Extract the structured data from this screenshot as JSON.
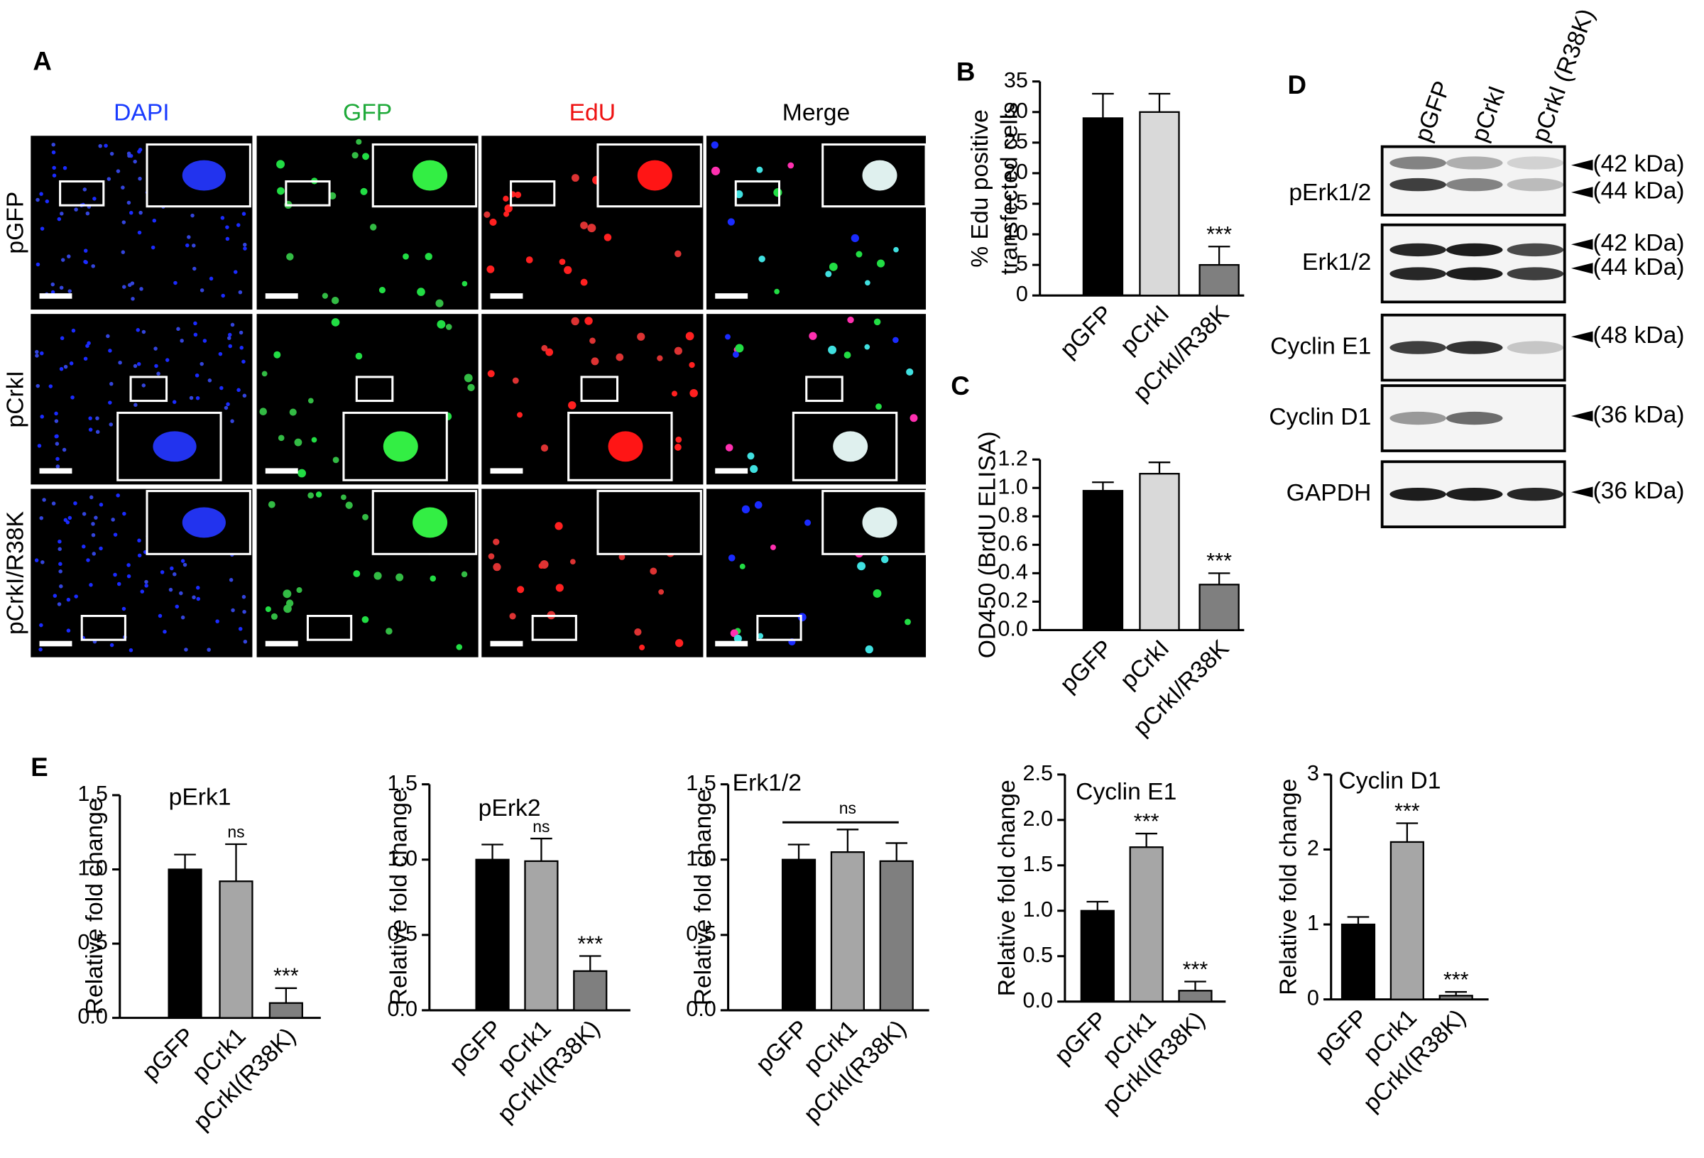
{
  "panel_labels": [
    "A",
    "B",
    "C",
    "D",
    "E"
  ],
  "panel_a": {
    "columns": [
      "DAPI",
      "GFP",
      "EdU",
      "Merge"
    ],
    "rows": [
      "pGFP",
      "pCrkI",
      "pCrkI/R38K"
    ]
  },
  "panel_d": {
    "lanes": [
      "pGFP",
      "pCrkI",
      "pCrkI (R38K)"
    ],
    "blots": [
      {
        "name": "pErk1/2",
        "sizes": [
          "(42 kDa)",
          "(44 kDa)"
        ]
      },
      {
        "name": "Erk1/2",
        "sizes": [
          "(42 kDa)",
          "(44 kDa)"
        ]
      },
      {
        "name": "Cyclin E1",
        "sizes": [
          "(48 kDa)"
        ]
      },
      {
        "name": "Cyclin D1",
        "sizes": [
          "(36 kDa)"
        ]
      },
      {
        "name": "GAPDH",
        "sizes": [
          "(36 kDa)"
        ]
      }
    ]
  },
  "chart_data": [
    {
      "type": "bar",
      "ylabel": [
        "% Edu positive",
        "transfected cells"
      ],
      "categories": [
        "pGFP",
        "pCrkI",
        "pCrkI/R38K"
      ],
      "values": [
        29,
        30,
        5
      ],
      "errors": [
        4,
        3,
        3
      ],
      "colors": [
        "#000000",
        "#d9d9d9",
        "#7f7f7f"
      ],
      "significance": [
        null,
        null,
        "***"
      ],
      "ylim": [
        0,
        35
      ],
      "yticks": [
        0,
        5,
        10,
        15,
        20,
        25,
        30,
        35
      ]
    },
    {
      "type": "bar",
      "ylabel": [
        "OD450 (BrdU ELISA)"
      ],
      "categories": [
        "pGFP",
        "pCrkI",
        "pCrkI/R38K"
      ],
      "values": [
        0.98,
        1.1,
        0.32
      ],
      "errors": [
        0.06,
        0.08,
        0.08
      ],
      "colors": [
        "#000000",
        "#d9d9d9",
        "#7f7f7f"
      ],
      "significance": [
        null,
        null,
        "***"
      ],
      "ylim": [
        0,
        1.2
      ],
      "yticks": [
        {
          "value": 0,
          "label": "0.0"
        },
        0.2,
        0.4,
        0.6,
        0.8,
        {
          "value": 1,
          "label": "1.0"
        },
        1.2
      ]
    },
    {
      "type": "bar",
      "title": "pErk1",
      "ylabel": [
        "Relative fold change"
      ],
      "categories": [
        "pGFP",
        "pCrk1",
        "pCrkI(R38K)"
      ],
      "values": [
        1.0,
        0.92,
        0.1
      ],
      "errors": [
        0.1,
        0.25,
        0.1
      ],
      "colors": [
        "#000000",
        "#a6a6a6",
        "#7f7f7f"
      ],
      "significance": [
        null,
        "ns",
        "***"
      ],
      "ylim": [
        0,
        1.5
      ],
      "yticks": [
        {
          "value": 0,
          "label": "0.0"
        },
        0.5,
        {
          "value": 1,
          "label": "1.0"
        },
        1.5
      ]
    },
    {
      "type": "bar",
      "title": "pErk2",
      "ylabel": [
        "Relative fold change"
      ],
      "categories": [
        "pGFP",
        "pCrk1",
        "pCrkI(R38K)"
      ],
      "values": [
        1.0,
        0.99,
        0.26
      ],
      "errors": [
        0.1,
        0.15,
        0.1
      ],
      "colors": [
        "#000000",
        "#a6a6a6",
        "#7f7f7f"
      ],
      "significance": [
        null,
        "ns",
        "***"
      ],
      "ylim": [
        0,
        1.5
      ],
      "yticks": [
        {
          "value": 0,
          "label": "0.0"
        },
        0.5,
        {
          "value": 1,
          "label": "1.0"
        },
        1.5
      ]
    },
    {
      "type": "bar",
      "title": "Erk1/2",
      "ylabel": [
        "Relative fold change"
      ],
      "categories": [
        "pGFP",
        "pCrk1",
        "pCrkI(R38K)"
      ],
      "values": [
        1.0,
        1.05,
        0.99
      ],
      "errors": [
        0.1,
        0.15,
        0.12
      ],
      "colors": [
        "#000000",
        "#a6a6a6",
        "#7f7f7f"
      ],
      "group_significance": "ns",
      "ylim": [
        0,
        1.5
      ],
      "yticks": [
        {
          "value": 0,
          "label": "0.0"
        },
        0.5,
        {
          "value": 1,
          "label": "1.0"
        },
        1.5
      ]
    },
    {
      "type": "bar",
      "title": "Cyclin E1",
      "ylabel": [
        "Relative fold change"
      ],
      "categories": [
        "pGFP",
        "pCrk1",
        "pCrkI(R38K)"
      ],
      "values": [
        1.0,
        1.7,
        0.12
      ],
      "errors": [
        0.1,
        0.15,
        0.1
      ],
      "colors": [
        "#000000",
        "#a6a6a6",
        "#7f7f7f"
      ],
      "significance": [
        null,
        "***",
        "***"
      ],
      "ylim": [
        0,
        2.5
      ],
      "yticks": [
        {
          "value": 0,
          "label": "0.0"
        },
        0.5,
        {
          "value": 1,
          "label": "1.0"
        },
        1.5,
        {
          "value": 2,
          "label": "2.0"
        },
        2.5
      ]
    },
    {
      "type": "bar",
      "title": "Cyclin D1",
      "ylabel": [
        "Relative fold change"
      ],
      "categories": [
        "pGFP",
        "pCrk1",
        "pCrkI(R38K)"
      ],
      "values": [
        1.0,
        2.1,
        0.05
      ],
      "errors": [
        0.1,
        0.25,
        0.05
      ],
      "colors": [
        "#000000",
        "#a6a6a6",
        "#7f7f7f"
      ],
      "significance": [
        null,
        "***",
        "***"
      ],
      "ylim": [
        0,
        3
      ],
      "yticks": [
        0,
        1,
        2,
        3
      ]
    }
  ]
}
